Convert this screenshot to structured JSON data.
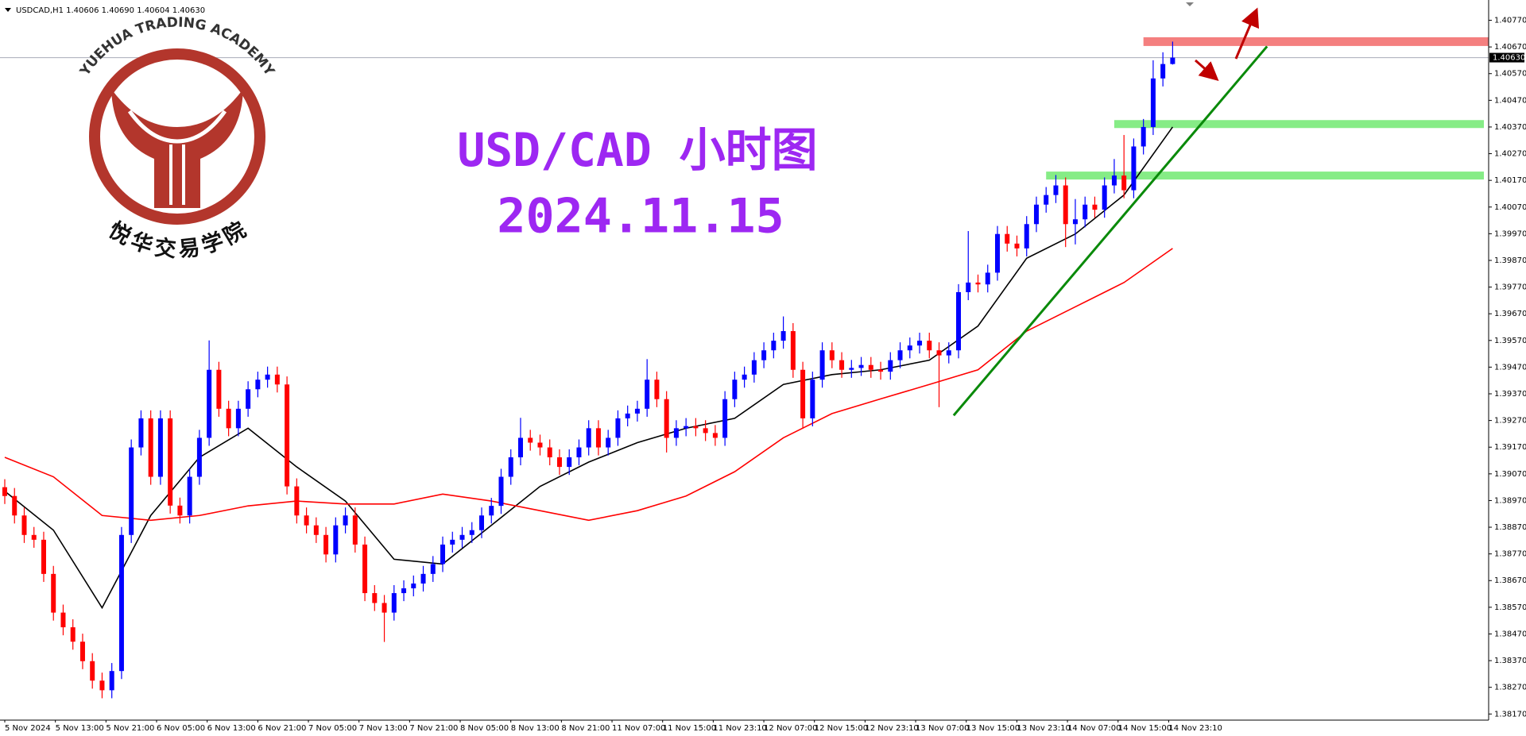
{
  "header": "USDCAD,H1  1.40606 1.40690 1.40604 1.40630",
  "logo": {
    "top": "YUEHUA TRADING ACADEMY",
    "bottom": "悦华交易学院"
  },
  "chart_data": {
    "type": "candlestick",
    "title": "USD/CAD 小时图",
    "subtitle": "2024.11.15",
    "up_color": "#0000ff",
    "down_color": "#ff0000",
    "ylim": [
      1.3815,
      1.4084
    ],
    "yticks": [
      {
        "value": 1.4077,
        "label": "1.40770"
      },
      {
        "value": 1.4067,
        "label": "1.40670"
      },
      {
        "value": 1.4057,
        "label": "1.40570"
      },
      {
        "value": 1.4047,
        "label": "1.40470"
      },
      {
        "value": 1.4037,
        "label": "1.40370"
      },
      {
        "value": 1.4027,
        "label": "1.40270"
      },
      {
        "value": 1.4017,
        "label": "1.40170"
      },
      {
        "value": 1.4007,
        "label": "1.40070"
      },
      {
        "value": 1.3997,
        "label": "1.39970"
      },
      {
        "value": 1.3987,
        "label": "1.39870"
      },
      {
        "value": 1.3977,
        "label": "1.39770"
      },
      {
        "value": 1.3967,
        "label": "1.39670"
      },
      {
        "value": 1.3957,
        "label": "1.39570"
      },
      {
        "value": 1.3947,
        "label": "1.39470"
      },
      {
        "value": 1.3937,
        "label": "1.39370"
      },
      {
        "value": 1.3927,
        "label": "1.39270"
      },
      {
        "value": 1.3917,
        "label": "1.39170"
      },
      {
        "value": 1.3907,
        "label": "1.39070"
      },
      {
        "value": 1.3897,
        "label": "1.38970"
      },
      {
        "value": 1.3887,
        "label": "1.38870"
      },
      {
        "value": 1.3877,
        "label": "1.38770"
      },
      {
        "value": 1.3867,
        "label": "1.38670"
      },
      {
        "value": 1.3857,
        "label": "1.38570"
      },
      {
        "value": 1.3847,
        "label": "1.38470"
      },
      {
        "value": 1.3837,
        "label": "1.38370"
      },
      {
        "value": 1.3827,
        "label": "1.38270"
      },
      {
        "value": 1.3817,
        "label": "1.38170"
      }
    ],
    "x_labels": [
      "5 Nov 2024",
      "5 Nov 13:00",
      "5 Nov 21:00",
      "6 Nov 05:00",
      "6 Nov 13:00",
      "6 Nov 21:00",
      "7 Nov 05:00",
      "7 Nov 13:00",
      "7 Nov 21:00",
      "8 Nov 05:00",
      "8 Nov 13:00",
      "8 Nov 21:00",
      "11 Nov 07:00",
      "11 Nov 15:00",
      "11 Nov 23:10",
      "12 Nov 07:00",
      "12 Nov 15:00",
      "12 Nov 23:10",
      "13 Nov 07:00",
      "13 Nov 15:00",
      "13 Nov 23:10",
      "14 Nov 07:00",
      "14 Nov 15:00",
      "14 Nov 23:10"
    ],
    "last_price": {
      "value": 1.4063,
      "label": "1.40630"
    },
    "candles": [
      [
        1.3902,
        1.3905,
        1.38957,
        1.38987
      ],
      [
        1.38987,
        1.39017,
        1.38884,
        1.38914
      ],
      [
        1.38914,
        1.38944,
        1.38811,
        1.38841
      ],
      [
        1.38841,
        1.38871,
        1.38793,
        1.38823
      ],
      [
        1.38823,
        1.38853,
        1.38665,
        1.38695
      ],
      [
        1.38695,
        1.38725,
        1.3852,
        1.3855
      ],
      [
        1.3855,
        1.3858,
        1.38465,
        1.38495
      ],
      [
        1.38495,
        1.38525,
        1.38411,
        1.38441
      ],
      [
        1.38441,
        1.38471,
        1.38338,
        1.38368
      ],
      [
        1.38368,
        1.38398,
        1.38265,
        1.38295
      ],
      [
        1.38295,
        1.38325,
        1.38229,
        1.38259
      ],
      [
        1.38259,
        1.38361,
        1.38229,
        1.38331
      ],
      [
        1.38331,
        1.38871,
        1.38301,
        1.38841
      ],
      [
        1.38841,
        1.39199,
        1.38811,
        1.39169
      ],
      [
        1.39169,
        1.39308,
        1.39139,
        1.39278
      ],
      [
        1.39278,
        1.39308,
        1.39029,
        1.39059
      ],
      [
        1.39059,
        1.39308,
        1.39029,
        1.39278
      ],
      [
        1.39278,
        1.39308,
        1.38921,
        1.38951
      ],
      [
        1.38951,
        1.38981,
        1.38884,
        1.38914
      ],
      [
        1.38914,
        1.39089,
        1.38884,
        1.39059
      ],
      [
        1.39059,
        1.39235,
        1.39029,
        1.39205
      ],
      [
        1.39205,
        1.3957,
        1.39175,
        1.3946
      ],
      [
        1.3946,
        1.3949,
        1.39284,
        1.39314
      ],
      [
        1.39314,
        1.39344,
        1.39211,
        1.39241
      ],
      [
        1.39241,
        1.39344,
        1.39211,
        1.39314
      ],
      [
        1.39314,
        1.39417,
        1.39284,
        1.39387
      ],
      [
        1.39387,
        1.39453,
        1.39357,
        1.39423
      ],
      [
        1.39423,
        1.39472,
        1.39393,
        1.39442
      ],
      [
        1.39442,
        1.39472,
        1.39375,
        1.39405
      ],
      [
        1.39405,
        1.39435,
        1.38993,
        1.39023
      ],
      [
        1.39023,
        1.39053,
        1.38884,
        1.38914
      ],
      [
        1.38914,
        1.38944,
        1.38847,
        1.38877
      ],
      [
        1.38877,
        1.38907,
        1.38811,
        1.38841
      ],
      [
        1.38841,
        1.38871,
        1.38738,
        1.38768
      ],
      [
        1.38768,
        1.38907,
        1.38738,
        1.38877
      ],
      [
        1.38877,
        1.38944,
        1.38847,
        1.38914
      ],
      [
        1.38914,
        1.38944,
        1.38775,
        1.38805
      ],
      [
        1.38805,
        1.38835,
        1.38593,
        1.38623
      ],
      [
        1.38623,
        1.38653,
        1.38556,
        1.38586
      ],
      [
        1.38586,
        1.38616,
        1.3844,
        1.3855
      ],
      [
        1.3855,
        1.38653,
        1.3852,
        1.38623
      ],
      [
        1.38623,
        1.38671,
        1.38593,
        1.38641
      ],
      [
        1.38641,
        1.38689,
        1.38611,
        1.38659
      ],
      [
        1.38659,
        1.38725,
        1.38629,
        1.38695
      ],
      [
        1.38695,
        1.38762,
        1.38665,
        1.38732
      ],
      [
        1.38732,
        1.38835,
        1.38702,
        1.38805
      ],
      [
        1.38805,
        1.38853,
        1.38775,
        1.38823
      ],
      [
        1.38823,
        1.38871,
        1.38793,
        1.38841
      ],
      [
        1.38841,
        1.38889,
        1.38811,
        1.38859
      ],
      [
        1.38859,
        1.38944,
        1.38829,
        1.38914
      ],
      [
        1.38914,
        1.3898,
        1.38884,
        1.3895
      ],
      [
        1.3895,
        1.39089,
        1.3892,
        1.39059
      ],
      [
        1.39059,
        1.39162,
        1.39029,
        1.39132
      ],
      [
        1.39132,
        1.3928,
        1.39102,
        1.39205
      ],
      [
        1.39205,
        1.39235,
        1.39157,
        1.39187
      ],
      [
        1.39187,
        1.39217,
        1.39139,
        1.39169
      ],
      [
        1.39169,
        1.39199,
        1.39102,
        1.39132
      ],
      [
        1.39132,
        1.39162,
        1.39066,
        1.39096
      ],
      [
        1.39096,
        1.39162,
        1.39066,
        1.39132
      ],
      [
        1.39132,
        1.39199,
        1.39102,
        1.39169
      ],
      [
        1.39169,
        1.39271,
        1.39139,
        1.39241
      ],
      [
        1.39241,
        1.39271,
        1.39139,
        1.39169
      ],
      [
        1.39169,
        1.39235,
        1.39139,
        1.39205
      ],
      [
        1.39205,
        1.39308,
        1.39175,
        1.39278
      ],
      [
        1.39278,
        1.39326,
        1.39248,
        1.39296
      ],
      [
        1.39296,
        1.39344,
        1.39266,
        1.39314
      ],
      [
        1.39314,
        1.395,
        1.39284,
        1.39423
      ],
      [
        1.39423,
        1.39453,
        1.3932,
        1.3935
      ],
      [
        1.3935,
        1.3938,
        1.3915,
        1.39205
      ],
      [
        1.39205,
        1.39271,
        1.39175,
        1.39241
      ],
      [
        1.39241,
        1.39279,
        1.39211,
        1.39249
      ],
      [
        1.39249,
        1.39279,
        1.39211,
        1.39241
      ],
      [
        1.39241,
        1.39271,
        1.39193,
        1.39223
      ],
      [
        1.39223,
        1.39253,
        1.39175,
        1.39205
      ],
      [
        1.39205,
        1.3938,
        1.39175,
        1.3935
      ],
      [
        1.3935,
        1.39453,
        1.3932,
        1.39423
      ],
      [
        1.39423,
        1.39472,
        1.39393,
        1.39442
      ],
      [
        1.39442,
        1.39526,
        1.39412,
        1.39496
      ],
      [
        1.39496,
        1.39563,
        1.39466,
        1.39533
      ],
      [
        1.39533,
        1.39599,
        1.39503,
        1.39569
      ],
      [
        1.39569,
        1.3966,
        1.39539,
        1.39605
      ],
      [
        1.39605,
        1.39635,
        1.3943,
        1.3946
      ],
      [
        1.3946,
        1.3949,
        1.3924,
        1.39278
      ],
      [
        1.39278,
        1.39453,
        1.39248,
        1.39423
      ],
      [
        1.39423,
        1.39563,
        1.39393,
        1.39533
      ],
      [
        1.39533,
        1.39563,
        1.39466,
        1.39496
      ],
      [
        1.39496,
        1.39526,
        1.3943,
        1.3946
      ],
      [
        1.3946,
        1.39497,
        1.3943,
        1.39467
      ],
      [
        1.39467,
        1.39508,
        1.39437,
        1.39478
      ],
      [
        1.39478,
        1.39508,
        1.3943,
        1.3946
      ],
      [
        1.3946,
        1.3949,
        1.39423,
        1.39453
      ],
      [
        1.39453,
        1.39526,
        1.39423,
        1.39496
      ],
      [
        1.39496,
        1.39563,
        1.39466,
        1.39533
      ],
      [
        1.39533,
        1.39581,
        1.39503,
        1.39551
      ],
      [
        1.39551,
        1.39599,
        1.39521,
        1.39569
      ],
      [
        1.39569,
        1.39599,
        1.39503,
        1.39533
      ],
      [
        1.39533,
        1.39563,
        1.3932,
        1.39514
      ],
      [
        1.39514,
        1.39563,
        1.39484,
        1.39533
      ],
      [
        1.39533,
        1.39781,
        1.39503,
        1.39751
      ],
      [
        1.39751,
        1.3998,
        1.39721,
        1.39787
      ],
      [
        1.39787,
        1.39817,
        1.3975,
        1.3978
      ],
      [
        1.3978,
        1.39854,
        1.3975,
        1.39824
      ],
      [
        1.39824,
        1.39999,
        1.39794,
        1.39969
      ],
      [
        1.39969,
        1.39999,
        1.39903,
        1.39933
      ],
      [
        1.39933,
        1.39963,
        1.39885,
        1.39915
      ],
      [
        1.39915,
        1.40036,
        1.39885,
        1.40006
      ],
      [
        1.40006,
        1.40109,
        1.39976,
        1.40079
      ],
      [
        1.40079,
        1.40145,
        1.40049,
        1.40115
      ],
      [
        1.40115,
        1.4019,
        1.40085,
        1.40151
      ],
      [
        1.40151,
        1.40181,
        1.3992,
        1.40006
      ],
      [
        1.40006,
        1.401,
        1.3993,
        1.40024
      ],
      [
        1.40024,
        1.40109,
        1.39994,
        1.40079
      ],
      [
        1.40079,
        1.40109,
        1.4003,
        1.4006
      ],
      [
        1.4006,
        1.40181,
        1.4003,
        1.40151
      ],
      [
        1.40151,
        1.4025,
        1.40121,
        1.40188
      ],
      [
        1.40188,
        1.4034,
        1.40103,
        1.40133
      ],
      [
        1.40133,
        1.40327,
        1.40103,
        1.40297
      ],
      [
        1.40297,
        1.404,
        1.40267,
        1.4037
      ],
      [
        1.4037,
        1.4062,
        1.4034,
        1.40552
      ],
      [
        1.40552,
        1.4065,
        1.40522,
        1.40606
      ],
      [
        1.40606,
        1.4069,
        1.40604,
        1.4063
      ]
    ],
    "lines": [
      {
        "color": "#000000",
        "x": [
          0,
          5,
          10,
          15,
          20,
          25,
          30,
          35,
          40,
          45,
          50,
          55,
          60,
          65,
          70,
          75,
          80,
          85,
          90,
          95,
          100,
          105,
          110,
          115,
          120
        ],
        "values": [
          1.39005,
          1.38859,
          1.38568,
          1.38914,
          1.39132,
          1.39241,
          1.39096,
          1.38968,
          1.3875,
          1.38732,
          1.38877,
          1.39023,
          1.39114,
          1.39187,
          1.39241,
          1.39278,
          1.39405,
          1.39442,
          1.3946,
          1.39496,
          1.39624,
          1.39878,
          1.39969,
          1.40115,
          1.4037
        ]
      },
      {
        "color": "#ff0000",
        "x": [
          0,
          5,
          10,
          15,
          20,
          25,
          30,
          35,
          40,
          45,
          50,
          55,
          60,
          65,
          70,
          75,
          80,
          85,
          90,
          95,
          100,
          105,
          110,
          115,
          120
        ],
        "values": [
          1.39132,
          1.39059,
          1.38914,
          1.38896,
          1.38914,
          1.3895,
          1.38968,
          1.38957,
          1.38957,
          1.38994,
          1.38968,
          1.38932,
          1.38896,
          1.38932,
          1.38987,
          1.39078,
          1.39205,
          1.39296,
          1.39351,
          1.39405,
          1.3946,
          1.39605,
          1.39696,
          1.39787,
          1.39915
        ]
      }
    ],
    "trendline": {
      "color": "#0a8a0a",
      "x": [
        97.5,
        129.7
      ],
      "values": [
        1.39289,
        1.40672
      ]
    },
    "levels": [
      {
        "value": 1.4069,
        "start": 117,
        "color": "#f47f7f"
      },
      {
        "value": 1.40381,
        "start": 114,
        "color": "#86ec86"
      },
      {
        "value": 1.40188,
        "start": 107,
        "color": "#86ec86"
      }
    ]
  }
}
